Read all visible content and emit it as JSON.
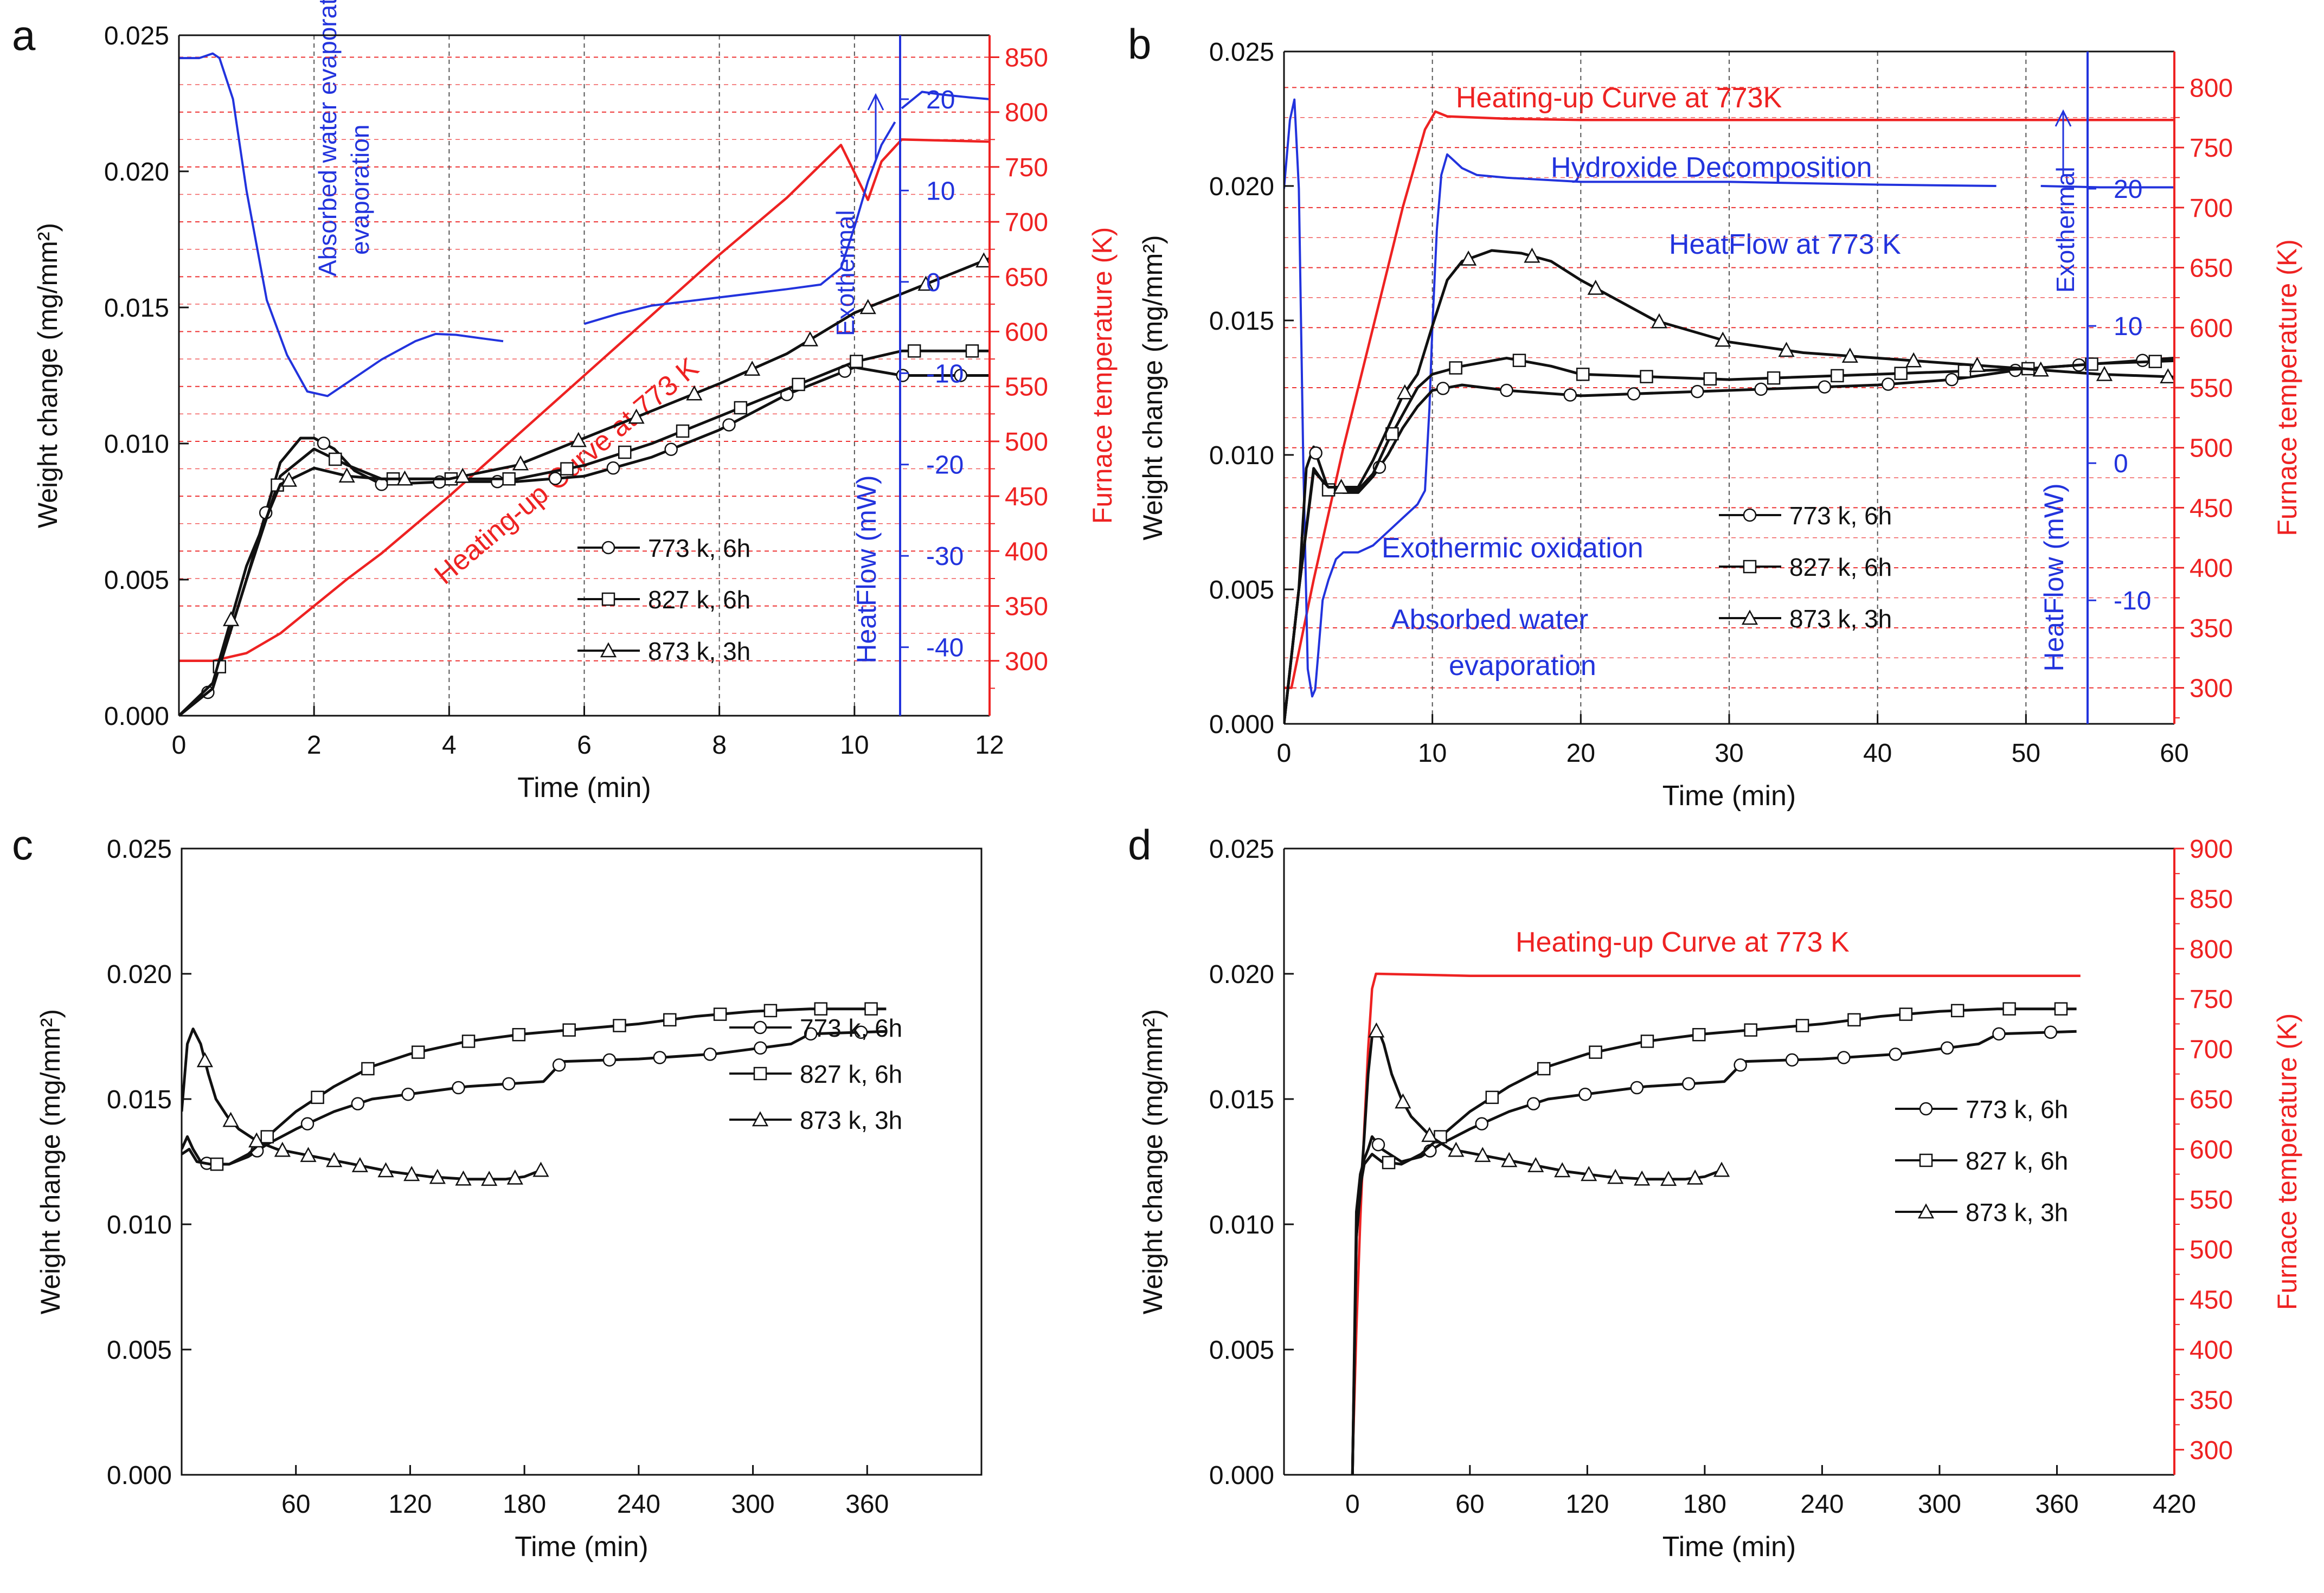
{
  "colors": {
    "black": "#111111",
    "red": "#ee2222",
    "blue": "#2233dd",
    "grid_red": "#ee3333",
    "grid_black": "#555555"
  },
  "legend_entries": [
    "773 k, 6h",
    "827 k, 6h",
    "873 k, 3h"
  ],
  "chart_data": [
    {
      "panel": "a",
      "type": "line",
      "xlabel": "Time (min)",
      "ylabel": "Weight change (mg/mm²)",
      "y2label": "Furnace temperature (K)",
      "y3label": "HeatFlow (mW)",
      "xlim": [
        0,
        12
      ],
      "ylim": [
        0,
        0.025
      ],
      "y2lim": [
        250,
        870
      ],
      "y3lim": [
        -47.5,
        27
      ],
      "xticks": [
        0,
        2,
        4,
        6,
        8,
        10,
        12
      ],
      "yticks": [
        "0.000",
        "0.005",
        "0.010",
        "0.015",
        "0.020",
        "0.025"
      ],
      "y2ticks": [
        300,
        350,
        400,
        450,
        500,
        550,
        600,
        650,
        700,
        750,
        800,
        850
      ],
      "y3ticks": [
        -40,
        -30,
        -20,
        -10,
        0,
        10,
        20
      ],
      "series": [
        {
          "name": "773 k, 6h",
          "marker": "circle",
          "x": [
            0,
            0.5,
            1,
            1.5,
            1.8,
            2,
            2.3,
            2.6,
            3,
            4,
            5,
            6,
            7,
            8,
            9,
            10,
            10.7,
            12
          ],
          "y": [
            0,
            0.001,
            0.005,
            0.0093,
            0.0102,
            0.0102,
            0.0098,
            0.009,
            0.0085,
            0.0086,
            0.0086,
            0.0088,
            0.0095,
            0.0105,
            0.0118,
            0.0128,
            0.0125,
            0.0125
          ]
        },
        {
          "name": "827 k, 6h",
          "marker": "square",
          "x": [
            0,
            0.5,
            1,
            1.5,
            2,
            2.5,
            3,
            4,
            5,
            6,
            7,
            8,
            9,
            10,
            10.7,
            12
          ],
          "y": [
            0,
            0.001,
            0.005,
            0.0088,
            0.0098,
            0.0092,
            0.0087,
            0.0087,
            0.0087,
            0.0092,
            0.01,
            0.011,
            0.012,
            0.013,
            0.0134,
            0.0134
          ]
        },
        {
          "name": "873 k, 3h",
          "marker": "triangle",
          "x": [
            0,
            0.5,
            1,
            1.5,
            2,
            2.5,
            3,
            4,
            5,
            6,
            7,
            8,
            9,
            10,
            11,
            12
          ],
          "y": [
            0,
            0.0012,
            0.0055,
            0.0085,
            0.0091,
            0.0088,
            0.0087,
            0.0087,
            0.0092,
            0.0102,
            0.0112,
            0.0122,
            0.0133,
            0.0148,
            0.0158,
            0.0168
          ]
        }
      ],
      "heating_curve": {
        "name": "Heating-up Curve at 773 K",
        "x": [
          0,
          0.5,
          1,
          1.5,
          2,
          2.5,
          3,
          4,
          5,
          6,
          7,
          8,
          9,
          9.8,
          10.2,
          10.4,
          10.7,
          12
        ],
        "y": [
          300,
          300,
          307,
          325,
          350,
          375,
          398,
          450,
          505,
          560,
          615,
          670,
          722,
          770,
          720,
          755,
          775,
          773
        ]
      },
      "heat_flow": {
        "name": "HeatFlow",
        "segments": [
          {
            "x": [
              0,
              0.3,
              0.5,
              0.6,
              0.8,
              1.0,
              1.3,
              1.6,
              1.9,
              2.2,
              2.5,
              3,
              3.5,
              3.8,
              4.1,
              4.5,
              4.8
            ],
            "y": [
              24.5,
              24.5,
              25,
              24.5,
              20,
              10,
              -2,
              -8,
              -12,
              -12.5,
              -11,
              -8.5,
              -6.5,
              -5.7,
              -5.8,
              -6.2,
              -6.5
            ]
          },
          {
            "x": [
              6,
              6.5,
              7,
              8,
              9,
              9.5,
              9.8,
              10,
              10.2,
              10.4,
              10.6
            ],
            "y": [
              -4.6,
              -3.5,
              -2.6,
              -1.7,
              -0.8,
              -0.3,
              1.5,
              6,
              11,
              15,
              17.5
            ]
          },
          {
            "x": [
              10.7,
              11,
              11.3,
              11.7,
              12
            ],
            "y": [
              19,
              20.8,
              20.5,
              20.2,
              20
            ]
          }
        ]
      },
      "annotations": [
        "Absorbed water evaporation",
        "Heating-up Curve at 773 K",
        "Exothermal"
      ]
    },
    {
      "panel": "b",
      "type": "line",
      "xlabel": "Time (min)",
      "ylabel": "Weight change (mg/mm²)",
      "y2label": "Furnace temperature (K)",
      "y3label": "HeatFlow (mW)",
      "xlim": [
        0,
        60
      ],
      "ylim": [
        0,
        0.025
      ],
      "y2lim": [
        270,
        830
      ],
      "y3lim": [
        -19,
        30
      ],
      "xticks": [
        0,
        10,
        20,
        30,
        40,
        50,
        60
      ],
      "yticks": [
        "0.000",
        "0.005",
        "0.010",
        "0.015",
        "0.020",
        "0.025"
      ],
      "y2ticks": [
        300,
        350,
        400,
        450,
        500,
        550,
        600,
        650,
        700,
        750,
        800
      ],
      "y3ticks": [
        -10,
        0,
        10,
        20
      ],
      "series": [
        {
          "name": "773 k, 6h",
          "marker": "circle",
          "x": [
            0,
            1,
            1.5,
            2,
            2.5,
            3,
            4,
            5,
            6,
            7,
            8,
            9,
            10,
            12,
            15,
            20,
            30,
            40,
            45,
            50,
            55,
            60
          ],
          "y": [
            0,
            0.005,
            0.0095,
            0.0103,
            0.0095,
            0.0087,
            0.0086,
            0.0086,
            0.0092,
            0.01,
            0.011,
            0.0118,
            0.0124,
            0.0126,
            0.0124,
            0.0122,
            0.0124,
            0.0126,
            0.0128,
            0.0132,
            0.0134,
            0.0136
          ]
        },
        {
          "name": "827 k, 6h",
          "marker": "square",
          "x": [
            0,
            1,
            2,
            3,
            4,
            5,
            6,
            7,
            8,
            9,
            10,
            12,
            15,
            18,
            20,
            30,
            40,
            50,
            55,
            60
          ],
          "y": [
            0,
            0.005,
            0.0095,
            0.0087,
            0.0087,
            0.0087,
            0.0093,
            0.0105,
            0.0115,
            0.0125,
            0.013,
            0.0133,
            0.0136,
            0.0133,
            0.013,
            0.0128,
            0.013,
            0.0132,
            0.0134,
            0.0135
          ]
        },
        {
          "name": "873 k, 3h",
          "marker": "triangle",
          "x": [
            0,
            1,
            2,
            3,
            4,
            5,
            6,
            7,
            8,
            9,
            10,
            11,
            12,
            14,
            16,
            18,
            20,
            25,
            30,
            35,
            40,
            45,
            50,
            55,
            60
          ],
          "y": [
            0,
            0.005,
            0.0094,
            0.0088,
            0.0088,
            0.0088,
            0.0098,
            0.011,
            0.0122,
            0.013,
            0.0148,
            0.0165,
            0.0172,
            0.0176,
            0.0175,
            0.0172,
            0.0165,
            0.015,
            0.0142,
            0.0138,
            0.0136,
            0.0134,
            0.0132,
            0.013,
            0.0129
          ]
        }
      ],
      "heating_curve": {
        "name": "Heating-up Curve at 773K",
        "x": [
          0,
          0.5,
          2,
          4,
          6,
          8,
          9.5,
          10.2,
          11,
          15,
          20,
          30,
          40,
          48,
          51,
          60
        ],
        "y": [
          300,
          300,
          390,
          500,
          600,
          700,
          765,
          780,
          776,
          774,
          773,
          773,
          773,
          773,
          773,
          773
        ]
      },
      "heat_flow": {
        "name": "HeatFlow at 773 K",
        "segments": [
          {
            "x": [
              0,
              0.4,
              0.7,
              1.0,
              1.3,
              1.6,
              1.9,
              2.1,
              2.3,
              2.6,
              3,
              3.5,
              4,
              4.5,
              5,
              6,
              7,
              8,
              9,
              9.5,
              9.8,
              10,
              10.3,
              10.6,
              11,
              11.5,
              12,
              13,
              15,
              20,
              30,
              40,
              48
            ],
            "y": [
              20,
              25,
              26.5,
              20,
              0,
              -15,
              -17,
              -16.5,
              -14,
              -10,
              -8.5,
              -7,
              -6.5,
              -6.5,
              -6.5,
              -6,
              -5,
              -4,
              -3,
              -2,
              4,
              10,
              17,
              21,
              22.5,
              22,
              21.5,
              21,
              20.8,
              20.5,
              20.5,
              20.3,
              20.2
            ]
          },
          {
            "x": [
              51,
              55,
              60
            ],
            "y": [
              20.2,
              20.1,
              20.1
            ]
          }
        ]
      },
      "annotations": [
        "Heating-up Curve at 773K",
        "Hydroxide Decomposition",
        "HeatFlow at 773 K",
        "Exothermal",
        "Exothermic oxidation",
        "Absorbed water evaporation"
      ]
    },
    {
      "panel": "c",
      "type": "line",
      "xlabel": "Time (min)",
      "ylabel": "Weight change (mg/mm²)",
      "xlim": [
        0,
        420
      ],
      "ylim": [
        0,
        0.025
      ],
      "xticks": [
        60,
        120,
        180,
        240,
        300,
        360
      ],
      "yticks": [
        "0.000",
        "0.005",
        "0.010",
        "0.015",
        "0.020",
        "0.025"
      ],
      "series": [
        {
          "name": "773 k, 6h",
          "marker": "circle",
          "x": [
            0,
            3,
            6,
            10,
            15,
            25,
            35,
            45,
            60,
            80,
            100,
            120,
            150,
            190,
            200,
            240,
            280,
            320,
            330,
            370
          ],
          "y": [
            0.013,
            0.0135,
            0.013,
            0.0125,
            0.0124,
            0.0124,
            0.0127,
            0.0132,
            0.0138,
            0.0145,
            0.015,
            0.0152,
            0.0155,
            0.0157,
            0.0165,
            0.0166,
            0.0168,
            0.0172,
            0.0176,
            0.0177
          ]
        },
        {
          "name": "827 k, 6h",
          "marker": "square",
          "x": [
            0,
            4,
            8,
            15,
            25,
            35,
            45,
            60,
            80,
            100,
            120,
            150,
            180,
            210,
            240,
            270,
            300,
            330,
            370
          ],
          "y": [
            0.0128,
            0.013,
            0.0125,
            0.0124,
            0.0124,
            0.0128,
            0.0135,
            0.0145,
            0.0155,
            0.0163,
            0.0168,
            0.0173,
            0.0176,
            0.0178,
            0.018,
            0.0183,
            0.0185,
            0.0186,
            0.0186
          ]
        },
        {
          "name": "873 k, 3h",
          "marker": "triangle",
          "x": [
            0,
            3,
            6,
            10,
            14,
            18,
            24,
            30,
            40,
            50,
            70,
            90,
            110,
            130,
            150,
            170,
            180,
            190
          ],
          "y": [
            0.0145,
            0.0172,
            0.0178,
            0.0172,
            0.016,
            0.015,
            0.0143,
            0.0138,
            0.0133,
            0.013,
            0.0127,
            0.0124,
            0.0121,
            0.0119,
            0.0118,
            0.0118,
            0.0119,
            0.0122
          ]
        }
      ]
    },
    {
      "panel": "d",
      "type": "line",
      "xlabel": "Time (min)",
      "ylabel": "Weight change (mg/mm²)",
      "y2label": "Furnace temperature (K)",
      "xlim": [
        -35,
        420
      ],
      "ylim": [
        0,
        0.025
      ],
      "y2lim": [
        275,
        900
      ],
      "xticks": [
        0,
        60,
        120,
        180,
        240,
        300,
        360,
        420
      ],
      "yticks": [
        "0.000",
        "0.005",
        "0.010",
        "0.015",
        "0.020",
        "0.025"
      ],
      "y2ticks": [
        300,
        350,
        400,
        450,
        500,
        550,
        600,
        650,
        700,
        750,
        800,
        850,
        900
      ],
      "series": [
        {
          "name": "773 k, 6h",
          "marker": "circle",
          "x": [
            0,
            2,
            4,
            6,
            8,
            10,
            15,
            25,
            35,
            45,
            60,
            80,
            100,
            120,
            150,
            190,
            200,
            240,
            280,
            320,
            330,
            370
          ],
          "y": [
            0,
            0.0105,
            0.012,
            0.0126,
            0.013,
            0.0135,
            0.013,
            0.0125,
            0.0127,
            0.0132,
            0.0138,
            0.0145,
            0.015,
            0.0152,
            0.0155,
            0.0157,
            0.0165,
            0.0166,
            0.0168,
            0.0172,
            0.0176,
            0.0177
          ]
        },
        {
          "name": "827 k, 6h",
          "marker": "square",
          "x": [
            0,
            2,
            4,
            6,
            10,
            15,
            25,
            35,
            45,
            60,
            80,
            100,
            120,
            150,
            180,
            210,
            240,
            270,
            300,
            330,
            370
          ],
          "y": [
            0,
            0.0095,
            0.0115,
            0.0124,
            0.0128,
            0.0125,
            0.0124,
            0.0128,
            0.0135,
            0.0145,
            0.0155,
            0.0163,
            0.0168,
            0.0173,
            0.0176,
            0.0178,
            0.018,
            0.0183,
            0.0185,
            0.0186,
            0.0186
          ]
        },
        {
          "name": "873 k, 3h",
          "marker": "triangle",
          "x": [
            0,
            2,
            4,
            6,
            8,
            10,
            13,
            16,
            20,
            25,
            30,
            40,
            50,
            70,
            90,
            110,
            130,
            150,
            170,
            180,
            190
          ],
          "y": [
            0,
            0.0095,
            0.0112,
            0.0135,
            0.016,
            0.0175,
            0.0178,
            0.0172,
            0.016,
            0.015,
            0.0143,
            0.0135,
            0.013,
            0.0127,
            0.0124,
            0.0121,
            0.0119,
            0.0118,
            0.0118,
            0.0119,
            0.0122
          ]
        }
      ],
      "heating_curve": {
        "name": "Heating-up Curve at 773 K",
        "x": [
          0,
          2,
          4,
          6,
          8,
          10,
          12,
          60,
          120,
          240,
          372
        ],
        "y": [
          285,
          420,
          530,
          620,
          700,
          760,
          775,
          773,
          773,
          773,
          773
        ]
      },
      "annotations": [
        "Heating-up Curve at 773 K"
      ]
    }
  ]
}
